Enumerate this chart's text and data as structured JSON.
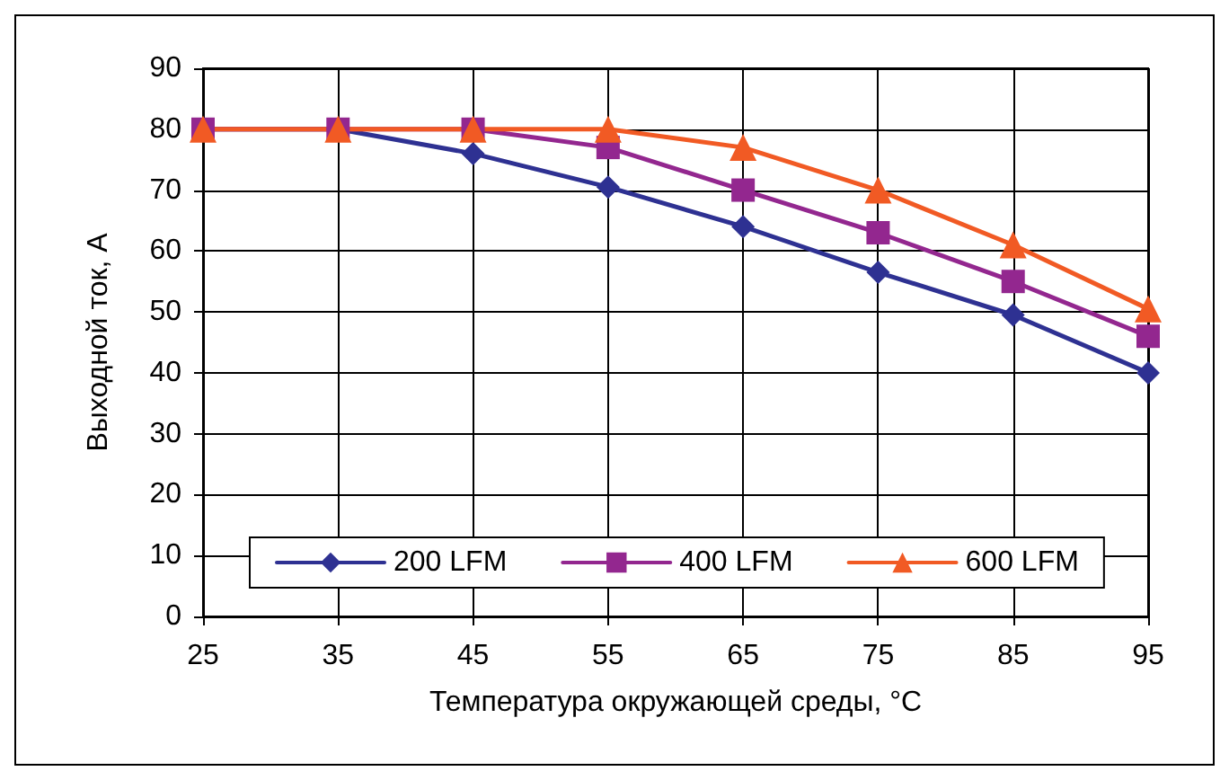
{
  "chart_data": {
    "type": "line",
    "xlabel": "Температура окружающей среды, °C",
    "ylabel": "Выходной ток, А",
    "x": [
      25,
      35,
      45,
      55,
      65,
      75,
      85,
      95
    ],
    "series": [
      {
        "name": "200 LFM",
        "color": "#2e3192",
        "marker": "diamond",
        "values": [
          80,
          80,
          76,
          70.5,
          64,
          56.5,
          49.5,
          40
        ]
      },
      {
        "name": "400 LFM",
        "color": "#93278f",
        "marker": "square",
        "values": [
          80,
          80,
          80,
          77,
          70,
          63,
          55,
          46
        ]
      },
      {
        "name": "600 LFM",
        "color": "#f15a24",
        "marker": "triangle",
        "values": [
          80,
          80,
          80,
          80,
          77,
          70,
          61,
          50.5
        ]
      }
    ],
    "xlim": [
      25,
      95
    ],
    "xticks": [
      25,
      35,
      45,
      55,
      65,
      75,
      85,
      95
    ],
    "ylim": [
      0,
      90
    ],
    "yticks": [
      0,
      10,
      20,
      30,
      40,
      50,
      60,
      70,
      80,
      90
    ],
    "grid": true,
    "legend": "bottom left",
    "line_style": "solid"
  }
}
